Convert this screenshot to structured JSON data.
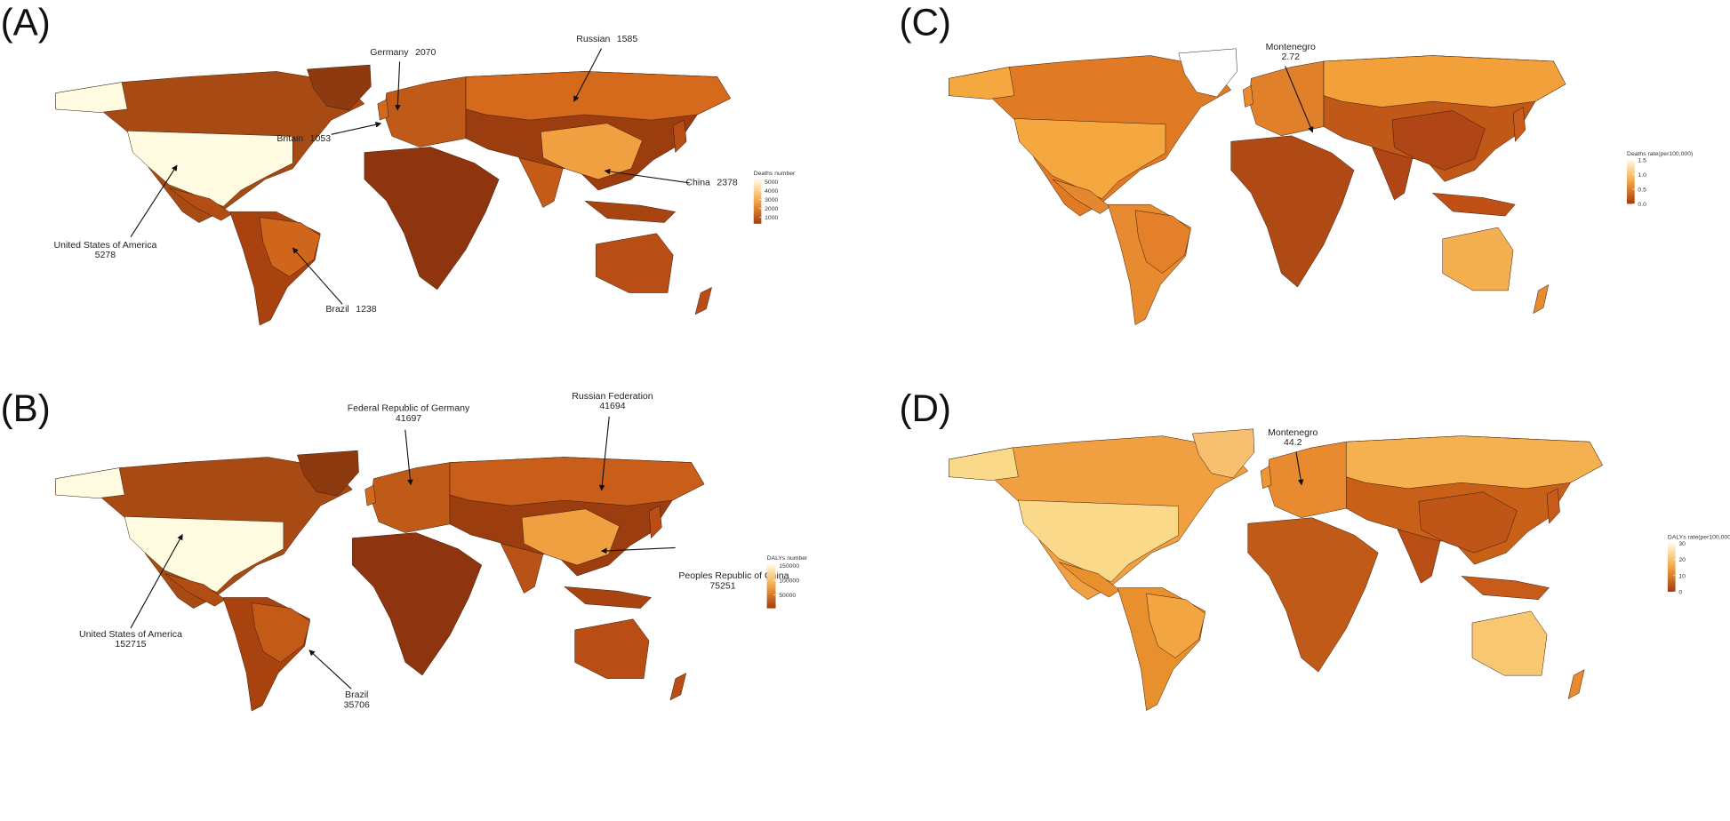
{
  "panels": [
    {
      "label": "(A)",
      "annotations": [
        {
          "name": "Germany",
          "value": 2070
        },
        {
          "name": "Russian",
          "value": 1585
        },
        {
          "name": "Britain",
          "value": 1053
        },
        {
          "name": "China",
          "value": 2378
        },
        {
          "name": "United States of America",
          "value": 5278
        },
        {
          "name": "Brazil",
          "value": 1238
        }
      ],
      "legend": {
        "title": "Deaths number",
        "range": [
          250,
          5250
        ],
        "ticks": [
          5000,
          4000,
          3000,
          2000,
          1000
        ],
        "colors": [
          "#fffbe0",
          "#f2a443",
          "#a33c0c"
        ]
      }
    },
    {
      "label": "(B)",
      "annotations": [
        {
          "name": "Federal Republic of Germany",
          "value": 41697
        },
        {
          "name": "Russian Federation",
          "value": 41694
        },
        {
          "name": "Peoples Republic of China",
          "value": 75251
        },
        {
          "name": "United States of America",
          "value": 152715
        },
        {
          "name": "Brazil",
          "value": 35706
        }
      ],
      "legend": {
        "title": "DALYs number",
        "range": [
          5000,
          154000
        ],
        "ticks": [
          150000,
          100000,
          50000
        ],
        "colors": [
          "#fffbe0",
          "#f2a443",
          "#a33c0c"
        ]
      }
    },
    {
      "label": "(C)",
      "annotations": [
        {
          "name": "Montenegro",
          "value": 2.72
        }
      ],
      "legend": {
        "title": "Deaths rate(per100,000)",
        "range": [
          0,
          1.5
        ],
        "ticks": [
          1.5,
          {
            "value": 1,
            "label": "1.0"
          },
          0.5,
          {
            "value": 0,
            "label": "0.0"
          }
        ],
        "colors": [
          "#fffbe0",
          "#f2a443",
          "#a33c0c"
        ]
      }
    },
    {
      "label": "(D)",
      "annotations": [
        {
          "name": "Montenegro",
          "value": 44.2
        }
      ],
      "legend": {
        "title": "DALYs rate(per100,000)",
        "range": [
          0,
          30
        ],
        "ticks": [
          30,
          20,
          10,
          0
        ],
        "colors": [
          "#fffbe0",
          "#f2a443",
          "#a33c0c"
        ]
      }
    }
  ]
}
